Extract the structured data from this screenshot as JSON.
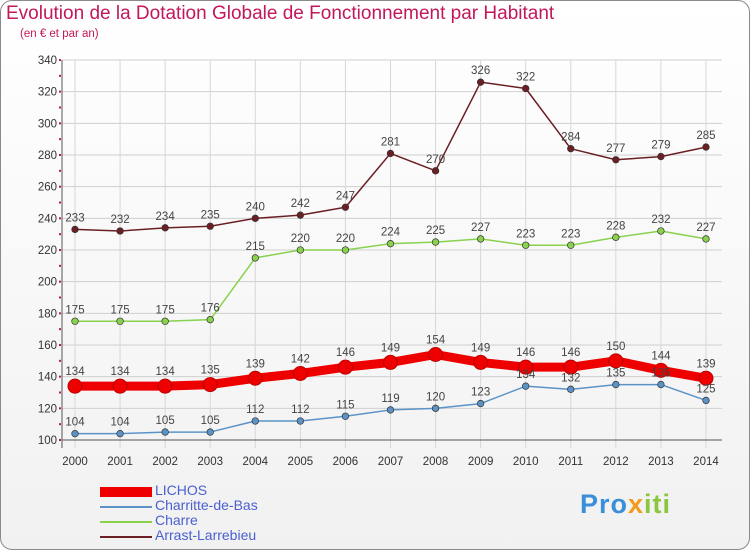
{
  "title": "Evolution de la Dotation Globale de Fonctionnement par Habitant",
  "subtitle": "(en € et par an)",
  "brand": "Proxiti",
  "chart_data": {
    "type": "line",
    "title": "Evolution de la Dotation Globale de Fonctionnement par Habitant",
    "subtitle": "(en € et par an)",
    "categories": [
      "2000",
      "2001",
      "2002",
      "2003",
      "2004",
      "2005",
      "2006",
      "2007",
      "2008",
      "2009",
      "2010",
      "2011",
      "2012",
      "2013",
      "2014"
    ],
    "ylim": [
      100,
      340
    ],
    "yticks": [
      100,
      120,
      140,
      160,
      180,
      200,
      220,
      240,
      260,
      280,
      300,
      320,
      340
    ],
    "grid": true,
    "legend_position": "bottom-left",
    "series": [
      {
        "name": "LICHOS",
        "color": "#ee0000",
        "values": [
          134,
          134,
          134,
          135,
          139,
          142,
          146,
          149,
          154,
          149,
          146,
          146,
          150,
          144,
          139
        ]
      },
      {
        "name": "Charritte-de-Bas",
        "color": "#5b93c7",
        "values": [
          104,
          104,
          105,
          105,
          112,
          112,
          115,
          119,
          120,
          123,
          134,
          132,
          135,
          135,
          125
        ]
      },
      {
        "name": "Charre",
        "color": "#88d24e",
        "values": [
          175,
          175,
          175,
          176,
          215,
          220,
          220,
          224,
          225,
          227,
          223,
          223,
          228,
          232,
          227
        ]
      },
      {
        "name": "Arrast-Larrebieu",
        "color": "#6b1f24",
        "values": [
          233,
          232,
          234,
          235,
          240,
          242,
          247,
          281,
          270,
          326,
          322,
          284,
          277,
          279,
          285
        ]
      }
    ]
  }
}
